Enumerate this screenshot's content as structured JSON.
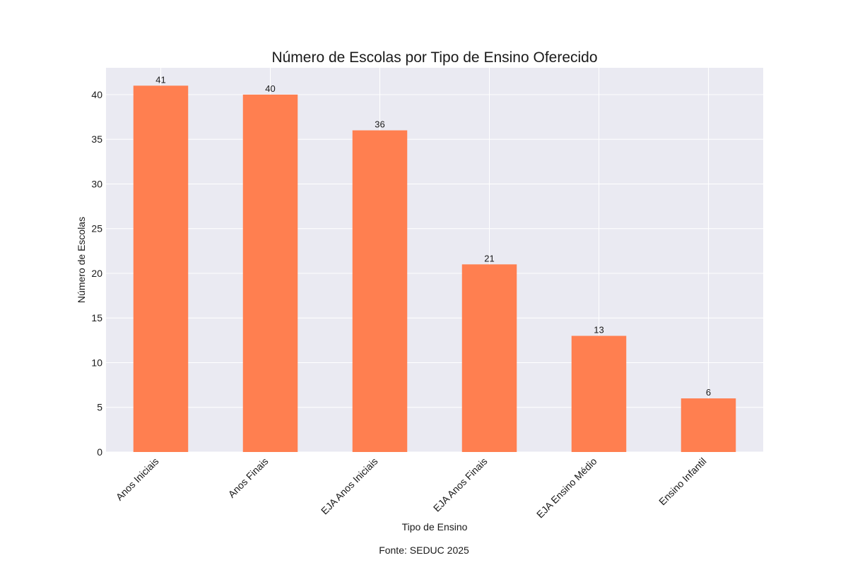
{
  "chart_data": {
    "type": "bar",
    "title": "Número de Escolas por Tipo de Ensino Oferecido",
    "xlabel": "Tipo de Ensino",
    "ylabel": "Número de Escolas",
    "categories": [
      "Anos Iniciais",
      "Anos Finais",
      "EJA Anos Iniciais",
      "EJA Anos Finais",
      "EJA Ensino Médio",
      "Ensino Infantil"
    ],
    "values": [
      41,
      40,
      36,
      21,
      13,
      6
    ],
    "ylim": [
      0,
      43
    ],
    "yticks": [
      0,
      5,
      10,
      15,
      20,
      25,
      30,
      35,
      40
    ],
    "grid": true,
    "bar_color": "#ff7f50",
    "background_color": "#eaeaf2",
    "data_labels": true
  },
  "footer": {
    "source": "Fonte: SEDUC 2025"
  }
}
